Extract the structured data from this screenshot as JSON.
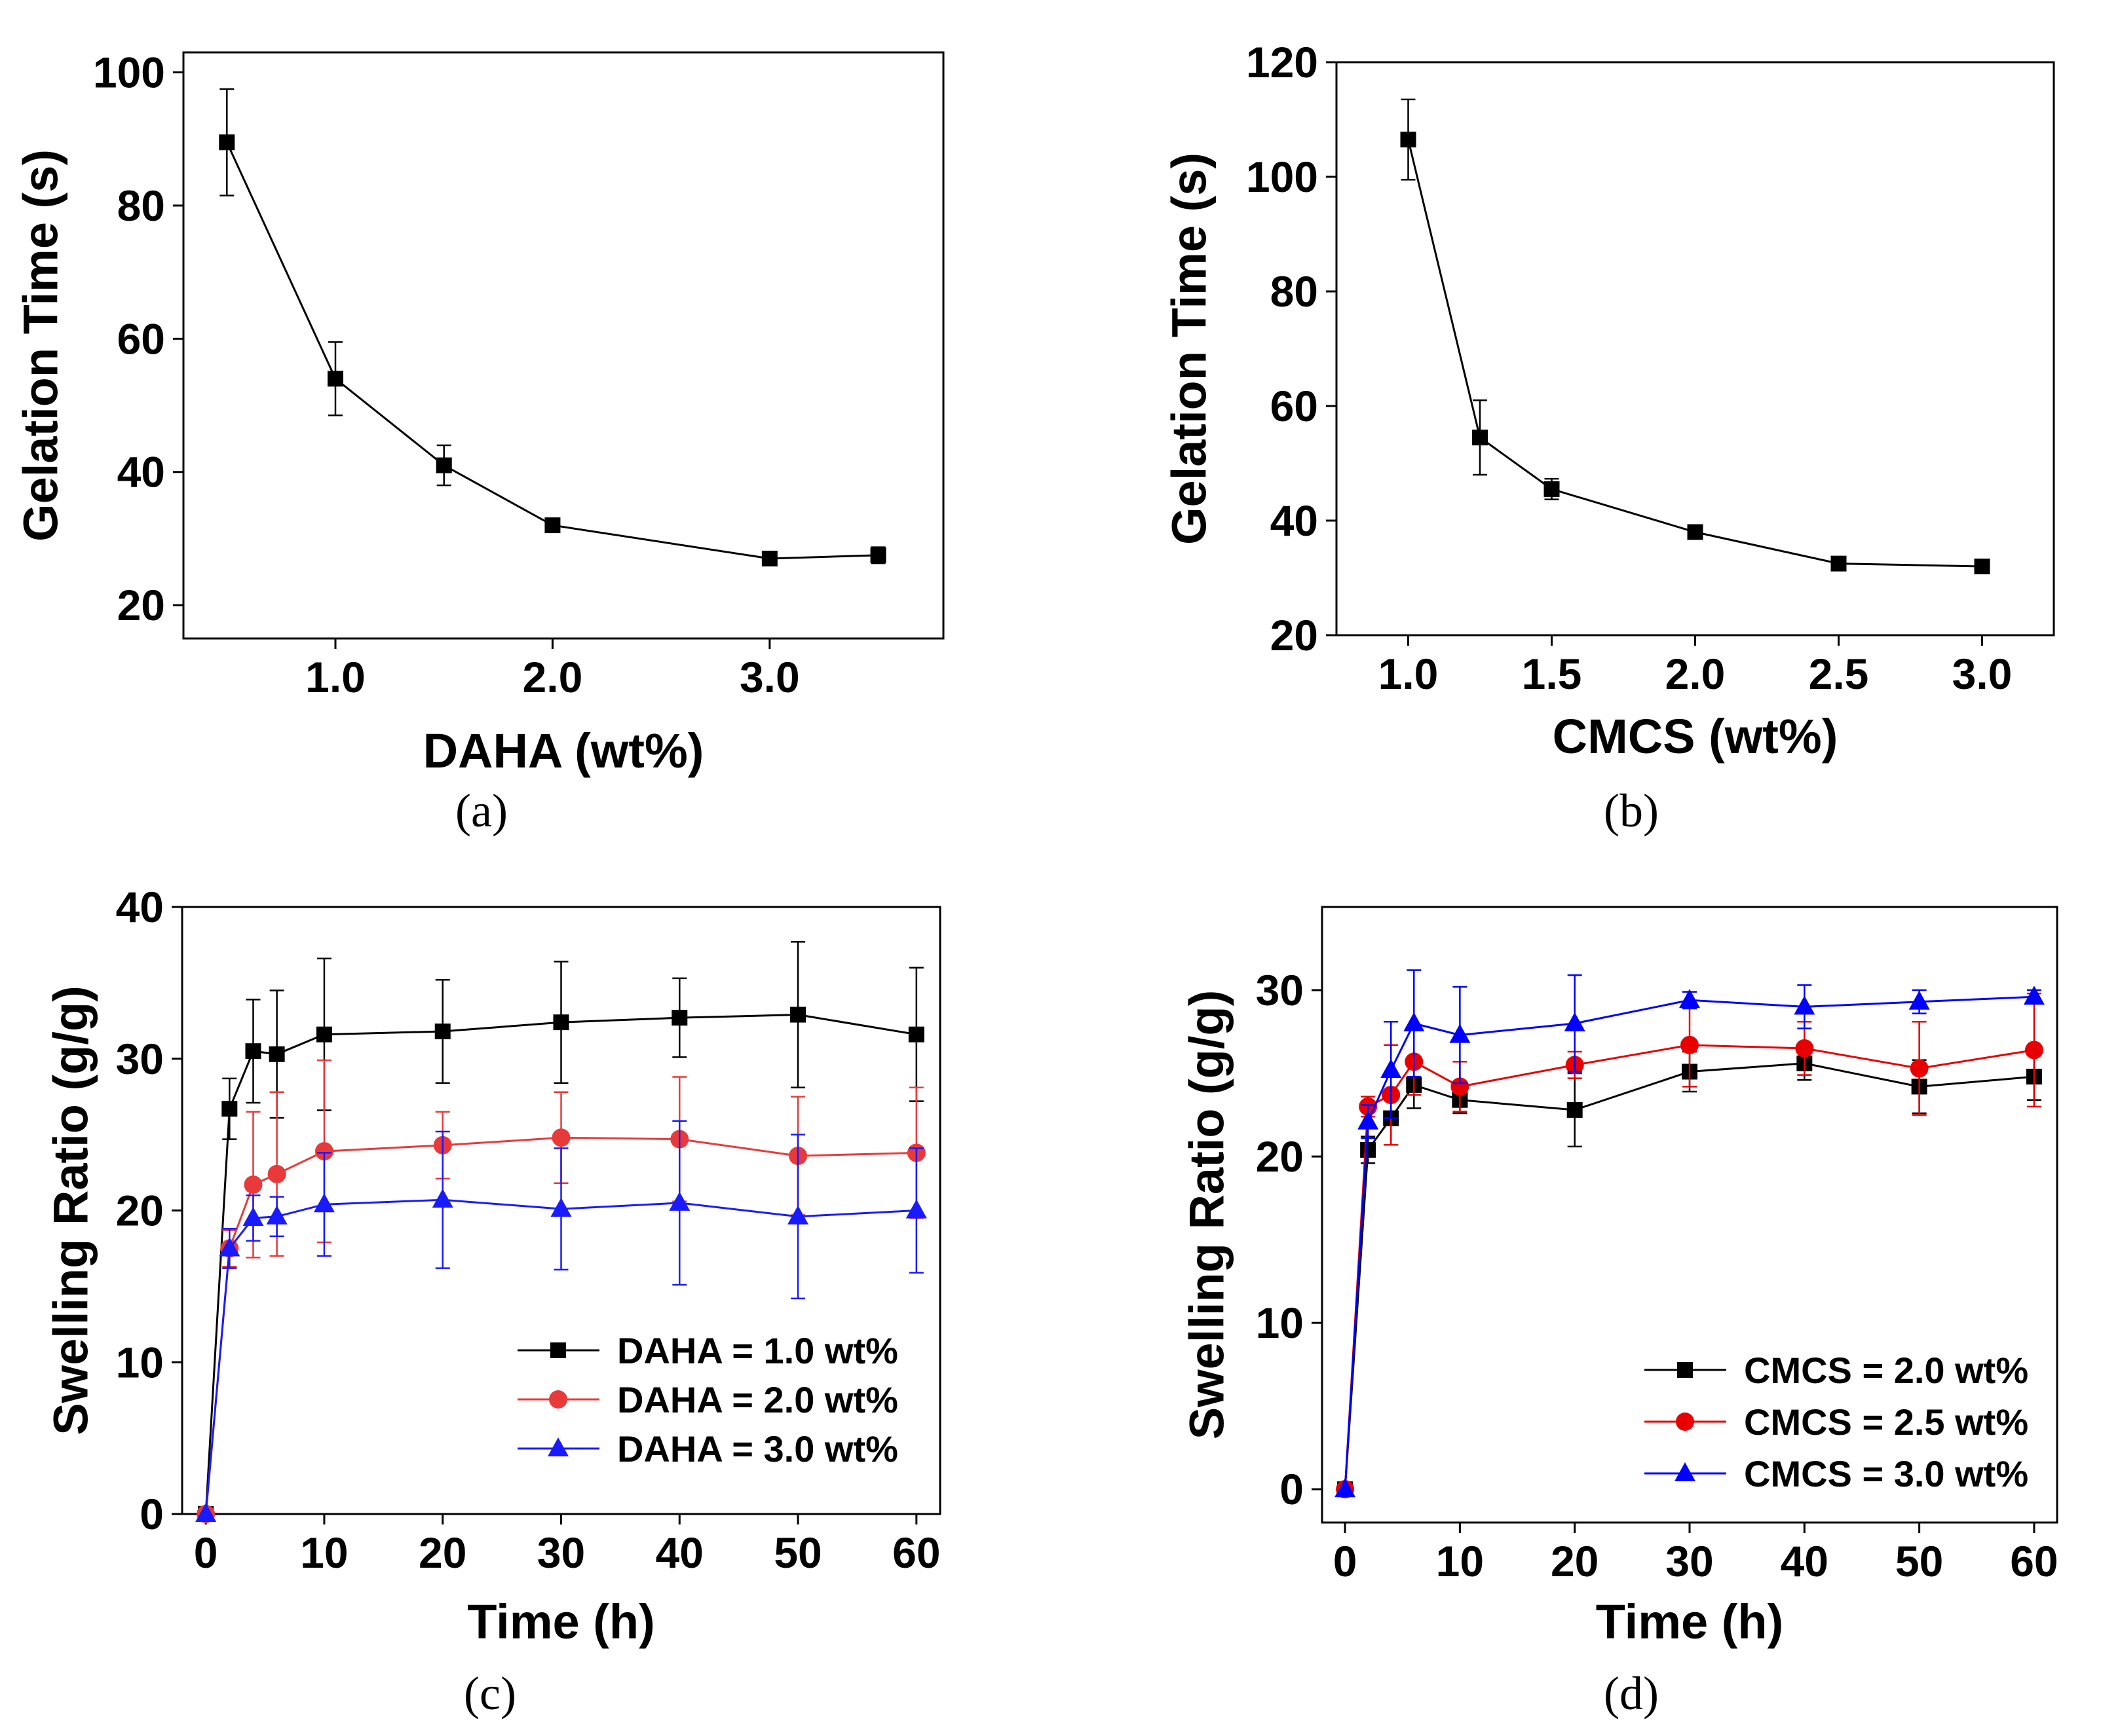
{
  "chart_data": [
    {
      "panel_label": "(a)",
      "type": "line",
      "xlabel": "DAHA (wt%)",
      "ylabel": "Gelation Time (s)",
      "xlim": [
        0.3,
        3.8
      ],
      "ylim": [
        15,
        103
      ],
      "xticks": [
        1.0,
        2.0,
        3.0
      ],
      "xtick_labels": [
        "1.0",
        "2.0",
        "3.0"
      ],
      "yticks": [
        20,
        40,
        60,
        80,
        100
      ],
      "ytick_labels": [
        "20",
        "40",
        "60",
        "80",
        "100"
      ],
      "series": [
        {
          "name": "Gelation time",
          "color": "#000000",
          "marker": "square",
          "x": [
            0.5,
            1.0,
            1.5,
            2.0,
            3.0,
            3.5
          ],
          "y": [
            89.5,
            54,
            41,
            32,
            27,
            27.5
          ],
          "err": [
            8,
            5.5,
            3,
            1,
            0.8,
            1.2
          ]
        }
      ]
    },
    {
      "panel_label": "(b)",
      "type": "line",
      "xlabel": "CMCS (wt%)",
      "ylabel": "Gelation Time (s)",
      "xlim": [
        0.75,
        3.25
      ],
      "ylim": [
        20,
        120
      ],
      "xticks": [
        1.0,
        1.5,
        2.0,
        2.5,
        3.0
      ],
      "xtick_labels": [
        "1.0",
        "1.5",
        "2.0",
        "2.5",
        "3.0"
      ],
      "yticks": [
        20,
        40,
        60,
        80,
        100,
        120
      ],
      "ytick_labels": [
        "20",
        "40",
        "60",
        "80",
        "100",
        "120"
      ],
      "series": [
        {
          "name": "Gelation time",
          "color": "#000000",
          "marker": "square",
          "x": [
            1.0,
            1.25,
            1.5,
            2.0,
            2.5,
            3.0
          ],
          "y": [
            106.5,
            54.5,
            45.5,
            38,
            32.5,
            32
          ],
          "err": [
            7,
            6.5,
            1.8,
            0.8,
            0.8,
            0.8
          ]
        }
      ]
    },
    {
      "panel_label": "(c)",
      "type": "line",
      "xlabel": "Time (h)",
      "ylabel": "Swelling Ratio (g/g)",
      "xlim": [
        -2,
        62
      ],
      "ylim": [
        0,
        40
      ],
      "xticks": [
        0,
        10,
        20,
        30,
        40,
        50,
        60
      ],
      "xtick_labels": [
        "0",
        "10",
        "20",
        "30",
        "40",
        "50",
        "60"
      ],
      "yticks": [
        0,
        10,
        20,
        30,
        40
      ],
      "ytick_labels": [
        "0",
        "10",
        "20",
        "30",
        "40"
      ],
      "legend_position": "bottom-right",
      "series": [
        {
          "name": "DAHA = 1.0 wt%",
          "color": "#000000",
          "marker": "square",
          "x": [
            0,
            2,
            4,
            6,
            10,
            20,
            30,
            40,
            50,
            60
          ],
          "y": [
            0,
            26.7,
            30.5,
            30.3,
            31.6,
            31.8,
            32.4,
            32.7,
            32.9,
            31.6
          ],
          "err": [
            0,
            2,
            3.4,
            4.2,
            5,
            3.4,
            4,
            2.6,
            4.8,
            4.4
          ]
        },
        {
          "name": "DAHA = 2.0 wt%",
          "color": "#e83a3a",
          "marker": "circle",
          "x": [
            0,
            2,
            4,
            6,
            10,
            20,
            30,
            40,
            50,
            60
          ],
          "y": [
            0,
            17.5,
            21.7,
            22.4,
            23.9,
            24.3,
            24.8,
            24.7,
            23.6,
            23.8
          ],
          "err": [
            0,
            1.2,
            4.8,
            5.4,
            6,
            2.2,
            3,
            4.1,
            3.9,
            4.3
          ]
        },
        {
          "name": "DAHA = 3.0 wt%",
          "color": "#1a1aff",
          "marker": "triangle",
          "x": [
            0,
            2,
            4,
            6,
            10,
            20,
            30,
            40,
            50,
            60
          ],
          "y": [
            0,
            17.5,
            19.5,
            19.6,
            20.4,
            20.7,
            20.1,
            20.5,
            19.6,
            20
          ],
          "err": [
            0,
            1.3,
            1.5,
            1.3,
            3.4,
            4.5,
            4,
            5.4,
            5.4,
            4.1
          ]
        }
      ]
    },
    {
      "panel_label": "(d)",
      "type": "line",
      "xlabel": "Time (h)",
      "ylabel": "Swelling Ratio (g/g)",
      "xlim": [
        -2,
        62
      ],
      "ylim": [
        -2,
        35
      ],
      "xticks": [
        0,
        10,
        20,
        30,
        40,
        50,
        60
      ],
      "xtick_labels": [
        "0",
        "10",
        "20",
        "30",
        "40",
        "50",
        "60"
      ],
      "yticks": [
        0,
        10,
        20,
        30
      ],
      "ytick_labels": [
        "0",
        "10",
        "20",
        "30"
      ],
      "legend_position": "bottom-right",
      "series": [
        {
          "name": "CMCS = 2.0 wt%",
          "color": "#000000",
          "marker": "square",
          "x": [
            0,
            2,
            4,
            6,
            10,
            20,
            30,
            40,
            50,
            60
          ],
          "y": [
            0,
            20.4,
            22.3,
            24.3,
            23.4,
            22.8,
            25.1,
            25.6,
            24.2,
            24.8
          ],
          "err": [
            0,
            0.8,
            1.6,
            1.4,
            0.8,
            2.2,
            1.2,
            1,
            1.6,
            1.4
          ]
        },
        {
          "name": "CMCS = 2.5 wt%",
          "color": "#e80000",
          "marker": "circle",
          "x": [
            0,
            2,
            4,
            6,
            10,
            20,
            30,
            40,
            50,
            60
          ],
          "y": [
            0,
            23,
            23.7,
            25.7,
            24.2,
            25.5,
            26.7,
            26.5,
            25.3,
            26.4
          ],
          "err": [
            0,
            0.6,
            3,
            2,
            1.5,
            0.8,
            2.5,
            1.6,
            2.8,
            3.4
          ]
        },
        {
          "name": "CMCS = 3.0 wt%",
          "color": "#0000ff",
          "marker": "triangle",
          "x": [
            0,
            2,
            4,
            6,
            10,
            20,
            30,
            40,
            50,
            60
          ],
          "y": [
            0,
            22.1,
            25.2,
            28,
            27.3,
            28,
            29.4,
            29,
            29.3,
            29.6
          ],
          "err": [
            0,
            1,
            2.9,
            3.2,
            2.9,
            2.9,
            0.5,
            1.3,
            0.7,
            0.4
          ]
        }
      ]
    }
  ]
}
